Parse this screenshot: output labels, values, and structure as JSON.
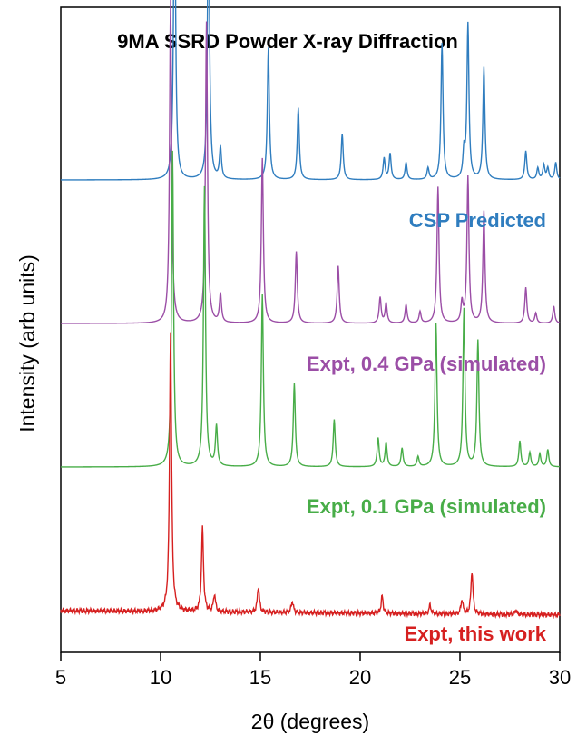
{
  "chart_data": {
    "type": "line",
    "title": "9MA SSRD Powder X-ray Diffraction",
    "xlabel": "2θ (degrees)",
    "ylabel": "Intensity (arb units)",
    "xlim": [
      5,
      30
    ],
    "xticks": [
      5,
      10,
      15,
      20,
      25,
      30
    ],
    "xtick_labels": [
      "5",
      "10",
      "15",
      "20",
      "25",
      "30"
    ],
    "grid": false,
    "legend": "labels beside each trace",
    "series": [
      {
        "name": "CSP Predicted",
        "color": "#2f7dbf",
        "baseline": 3.0,
        "peaks": [
          [
            10.7,
            2.2
          ],
          [
            12.4,
            2.0
          ],
          [
            13.0,
            0.22
          ],
          [
            15.4,
            0.92
          ],
          [
            16.9,
            0.5
          ],
          [
            19.1,
            0.32
          ],
          [
            21.2,
            0.15
          ],
          [
            21.5,
            0.18
          ],
          [
            22.3,
            0.12
          ],
          [
            23.4,
            0.08
          ],
          [
            24.1,
            0.95
          ],
          [
            25.2,
            0.18
          ],
          [
            25.4,
            1.08
          ],
          [
            26.2,
            0.78
          ],
          [
            28.3,
            0.2
          ],
          [
            28.9,
            0.08
          ],
          [
            29.2,
            0.1
          ],
          [
            29.4,
            0.08
          ],
          [
            29.8,
            0.12
          ]
        ]
      },
      {
        "name": "Expt, 0.4 GPa (simulated)",
        "color": "#9b4ea6",
        "baseline": 2.0,
        "peaks": [
          [
            10.5,
            2.25
          ],
          [
            12.3,
            2.1
          ],
          [
            13.0,
            0.2
          ],
          [
            15.1,
            1.15
          ],
          [
            16.8,
            0.5
          ],
          [
            18.9,
            0.4
          ],
          [
            21.0,
            0.18
          ],
          [
            21.3,
            0.14
          ],
          [
            22.3,
            0.13
          ],
          [
            23.0,
            0.08
          ],
          [
            23.9,
            0.95
          ],
          [
            25.1,
            0.14
          ],
          [
            25.4,
            1.02
          ],
          [
            26.2,
            0.78
          ],
          [
            28.3,
            0.25
          ],
          [
            28.8,
            0.07
          ],
          [
            29.7,
            0.12
          ]
        ]
      },
      {
        "name": "Expt, 0.1 GPa (simulated)",
        "color": "#48ad48",
        "baseline": 1.0,
        "peaks": [
          [
            10.6,
            2.2
          ],
          [
            12.2,
            1.95
          ],
          [
            12.8,
            0.28
          ],
          [
            15.1,
            1.2
          ],
          [
            16.7,
            0.58
          ],
          [
            18.7,
            0.33
          ],
          [
            20.9,
            0.2
          ],
          [
            21.3,
            0.17
          ],
          [
            22.1,
            0.13
          ],
          [
            22.9,
            0.07
          ],
          [
            23.8,
            1.0
          ],
          [
            25.2,
            1.1
          ],
          [
            25.9,
            0.88
          ],
          [
            28.0,
            0.18
          ],
          [
            28.5,
            0.1
          ],
          [
            29.0,
            0.09
          ],
          [
            29.4,
            0.12
          ]
        ]
      },
      {
        "name": "Expt, this work",
        "color": "#d62020",
        "baseline": 0.0,
        "peaks": [
          [
            10.5,
            1.95
          ],
          [
            12.1,
            0.58
          ],
          [
            12.7,
            0.12
          ],
          [
            14.9,
            0.18
          ],
          [
            16.6,
            0.08
          ],
          [
            21.1,
            0.12
          ],
          [
            23.5,
            0.06
          ],
          [
            25.1,
            0.1
          ],
          [
            25.6,
            0.3
          ],
          [
            27.8,
            0.03
          ]
        ]
      }
    ]
  }
}
